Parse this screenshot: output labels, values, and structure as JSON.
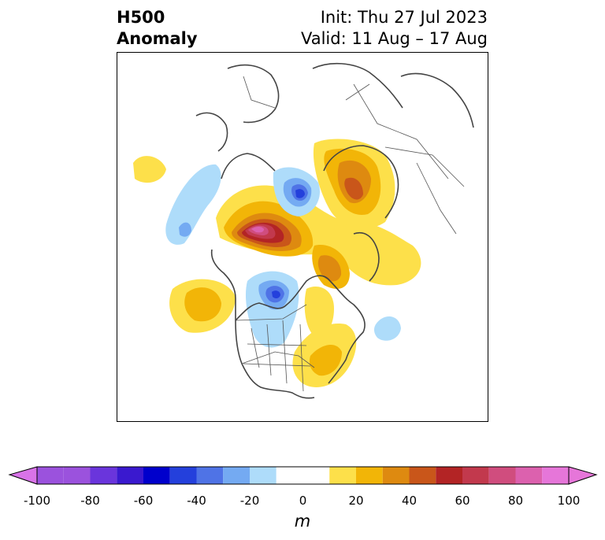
{
  "title": {
    "left_line1": "H500",
    "left_line2": "Anomaly",
    "right_line1": "Init: Thu 27 Jul 2023",
    "right_line2": "Valid: 11 Aug – 17 Aug"
  },
  "colorbar": {
    "unit": "m",
    "ticks": [
      "-100",
      "-80",
      "-60",
      "-40",
      "-20",
      "0",
      "20",
      "40",
      "60",
      "80",
      "100"
    ],
    "bins": [
      {
        "range": [
          -100,
          -90
        ],
        "color": "#9b52dd"
      },
      {
        "range": [
          -90,
          -80
        ],
        "color": "#9b52dd"
      },
      {
        "range": [
          -80,
          -70
        ],
        "color": "#6a35dc"
      },
      {
        "range": [
          -70,
          -60
        ],
        "color": "#3a19cf"
      },
      {
        "range": [
          -60,
          -50
        ],
        "color": "#0000cc"
      },
      {
        "range": [
          -50,
          -40
        ],
        "color": "#2440dc"
      },
      {
        "range": [
          -40,
          -30
        ],
        "color": "#4f73e6"
      },
      {
        "range": [
          -30,
          -20
        ],
        "color": "#74aaf2"
      },
      {
        "range": [
          -20,
          -10
        ],
        "color": "#aedcfa"
      },
      {
        "range": [
          -10,
          10
        ],
        "color": "#ffffff"
      },
      {
        "range": [
          10,
          20
        ],
        "color": "#fde04a"
      },
      {
        "range": [
          20,
          30
        ],
        "color": "#f2b507"
      },
      {
        "range": [
          30,
          40
        ],
        "color": "#de8a10"
      },
      {
        "range": [
          40,
          50
        ],
        "color": "#c9561a"
      },
      {
        "range": [
          50,
          60
        ],
        "color": "#b32425"
      },
      {
        "range": [
          60,
          70
        ],
        "color": "#c2394d"
      },
      {
        "range": [
          70,
          80
        ],
        "color": "#d04d7e"
      },
      {
        "range": [
          80,
          90
        ],
        "color": "#dc61ae"
      },
      {
        "range": [
          90,
          100
        ],
        "color": "#e676d9"
      }
    ],
    "extend_low_color": "#d873e8",
    "extend_high_color": "#e676d9"
  },
  "map": {
    "variable": "500 hPa geopotential height anomaly",
    "projection": "polar stereographic",
    "colors": {
      "coast": "#444444",
      "border": "#555555"
    }
  }
}
